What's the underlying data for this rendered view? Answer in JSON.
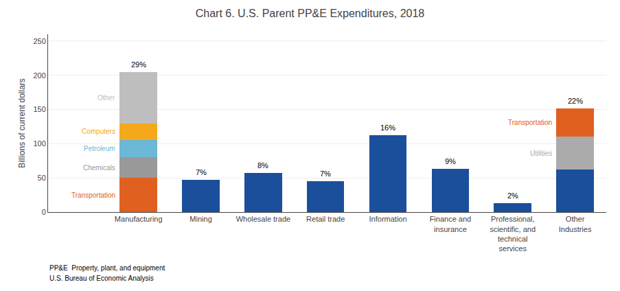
{
  "chart_data": {
    "type": "bar",
    "stacked": true,
    "title": "Chart 6. U.S. Parent PP&E Expenditures, 2018",
    "ylabel": "Billions of current dollars",
    "categories": [
      "Manufacturing",
      "Mining",
      "Wholesale trade",
      "Retail trade",
      "Information",
      "Finance and\ninsurance",
      "Professional,\nscientific, and\ntechnical\nservices",
      "Other\nIndustries"
    ],
    "series": [
      {
        "name": "Transportation",
        "color": "#E06020",
        "values": [
          50,
          null,
          null,
          null,
          null,
          null,
          null,
          null
        ]
      },
      {
        "name": "Chemicals",
        "color": "#999999",
        "values": [
          30,
          null,
          null,
          null,
          null,
          null,
          null,
          null
        ]
      },
      {
        "name": "Petroleum",
        "color": "#6BB8D8",
        "values": [
          25,
          null,
          null,
          null,
          null,
          null,
          null,
          null
        ]
      },
      {
        "name": "Computers",
        "color": "#F5A81C",
        "values": [
          25,
          null,
          null,
          null,
          null,
          null,
          null,
          null
        ]
      },
      {
        "name": "Other",
        "color": "#BEBEBE",
        "values": [
          75,
          null,
          null,
          null,
          null,
          null,
          null,
          null
        ]
      },
      {
        "color": "#1B4F9B",
        "values": [
          null,
          47,
          57,
          45,
          112,
          63,
          13,
          62
        ]
      },
      {
        "name": "Utilities",
        "color": "#ABABAB",
        "values": [
          null,
          null,
          null,
          null,
          null,
          null,
          null,
          48
        ]
      },
      {
        "name": "Transportation",
        "color": "#E06020",
        "values": [
          null,
          null,
          null,
          null,
          null,
          null,
          null,
          42
        ]
      }
    ],
    "annotations": [
      "29%",
      "7%",
      "8%",
      "7%",
      "16%",
      "9%",
      "2%",
      "22%"
    ],
    "footnotes": [
      "PP&E  Property, plant, and equipment",
      "U.S. Bureau of Economic Analysis"
    ],
    "ylim": [
      0,
      260
    ],
    "yticks": [
      0,
      50,
      100,
      150,
      200,
      250
    ],
    "grid": true
  }
}
